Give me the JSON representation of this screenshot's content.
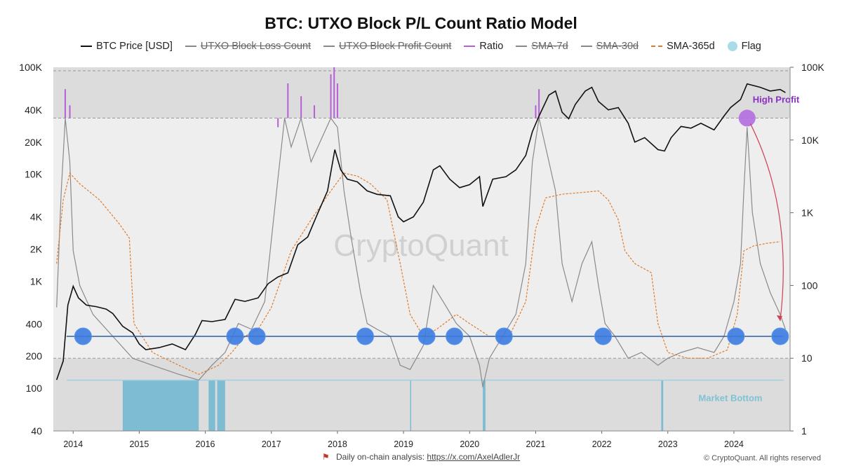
{
  "title": "BTC: UTXO Block P/L Count Ratio Model",
  "legend": [
    {
      "label": "BTC Price [USD]",
      "style": "line",
      "color": "#111111",
      "struck": false
    },
    {
      "label": "UTXO Block Loss Count",
      "style": "line",
      "color": "#888888",
      "struck": true
    },
    {
      "label": "UTXO Block Profit Count",
      "style": "line",
      "color": "#888888",
      "struck": true
    },
    {
      "label": "Ratio",
      "style": "line",
      "color": "#b65fd6",
      "struck": false
    },
    {
      "label": "SMA-7d",
      "style": "line",
      "color": "#888888",
      "struck": true
    },
    {
      "label": "SMA-30d",
      "style": "line",
      "color": "#888888",
      "struck": true
    },
    {
      "label": "SMA-365d",
      "style": "dashed",
      "color": "#e07b2a",
      "struck": false
    },
    {
      "label": "Flag",
      "style": "dot",
      "color": "#a8dceb",
      "struck": false
    }
  ],
  "footer": {
    "text": "Daily on-chain analysis: ",
    "link": "https://x.com/AxelAdlerJr",
    "copyright": "© CryptoQuant. All rights reserved"
  },
  "watermark": "CryptoQuant",
  "chart_data": {
    "type": "line",
    "left_axis": {
      "scale": "log",
      "range": [
        40,
        100000
      ],
      "ticks": [
        "40",
        "100",
        "200",
        "400",
        "1K",
        "2K",
        "4K",
        "10K",
        "20K",
        "40K",
        "100K"
      ],
      "tick_values": [
        40,
        100,
        200,
        400,
        1000,
        2000,
        4000,
        10000,
        20000,
        40000,
        100000
      ]
    },
    "right_axis": {
      "scale": "log",
      "range": [
        1,
        100000
      ],
      "ticks": [
        "1",
        "10",
        "100",
        "1K",
        "10K",
        "100K"
      ],
      "tick_values": [
        1,
        10,
        100,
        1000,
        10000,
        100000
      ]
    },
    "x_axis": {
      "range": [
        2013.7,
        2024.85
      ],
      "ticks": [
        "2014",
        "2015",
        "2016",
        "2017",
        "2018",
        "2019",
        "2020",
        "2021",
        "2022",
        "2023",
        "2024"
      ],
      "tick_values": [
        2014,
        2015,
        2016,
        2017,
        2018,
        2019,
        2020,
        2021,
        2022,
        2023,
        2024
      ]
    },
    "thresholds": {
      "upper_ratio": 20000,
      "lower_ratio": 10,
      "support_ratio": 20
    },
    "zones": {
      "top_color": "#dcdcdc",
      "mid_color": "#eeeeee",
      "bottom_color": "#dcdcdc"
    },
    "annotations": [
      {
        "text": "High Profit",
        "color": "#8a2fc4",
        "x": 2024.2,
        "y": 20000
      },
      {
        "text": "Market Bottom",
        "color": "#7fc2d6",
        "x": 2024.0,
        "y": 5
      }
    ],
    "btc_price": [
      [
        2013.75,
        120
      ],
      [
        2013.85,
        180
      ],
      [
        2013.92,
        600
      ],
      [
        2014.0,
        900
      ],
      [
        2014.08,
        700
      ],
      [
        2014.2,
        600
      ],
      [
        2014.35,
        580
      ],
      [
        2014.5,
        550
      ],
      [
        2014.6,
        500
      ],
      [
        2014.75,
        380
      ],
      [
        2014.9,
        330
      ],
      [
        2015.0,
        260
      ],
      [
        2015.1,
        230
      ],
      [
        2015.3,
        240
      ],
      [
        2015.5,
        260
      ],
      [
        2015.7,
        230
      ],
      [
        2015.85,
        320
      ],
      [
        2015.95,
        430
      ],
      [
        2016.1,
        420
      ],
      [
        2016.3,
        440
      ],
      [
        2016.45,
        680
      ],
      [
        2016.6,
        650
      ],
      [
        2016.8,
        700
      ],
      [
        2016.95,
        950
      ],
      [
        2017.1,
        1100
      ],
      [
        2017.25,
        1200
      ],
      [
        2017.4,
        2200
      ],
      [
        2017.55,
        2600
      ],
      [
        2017.7,
        4300
      ],
      [
        2017.85,
        7000
      ],
      [
        2017.96,
        17000
      ],
      [
        2018.05,
        11000
      ],
      [
        2018.15,
        9000
      ],
      [
        2018.3,
        8500
      ],
      [
        2018.45,
        7000
      ],
      [
        2018.6,
        6500
      ],
      [
        2018.8,
        6300
      ],
      [
        2018.92,
        4000
      ],
      [
        2019.0,
        3600
      ],
      [
        2019.15,
        4000
      ],
      [
        2019.3,
        5500
      ],
      [
        2019.45,
        11000
      ],
      [
        2019.55,
        12000
      ],
      [
        2019.7,
        9000
      ],
      [
        2019.85,
        7500
      ],
      [
        2020.0,
        8000
      ],
      [
        2020.15,
        9500
      ],
      [
        2020.2,
        5000
      ],
      [
        2020.35,
        9000
      ],
      [
        2020.55,
        9500
      ],
      [
        2020.7,
        11000
      ],
      [
        2020.85,
        15000
      ],
      [
        2020.95,
        25000
      ],
      [
        2021.05,
        35000
      ],
      [
        2021.2,
        55000
      ],
      [
        2021.3,
        60000
      ],
      [
        2021.4,
        38000
      ],
      [
        2021.5,
        33000
      ],
      [
        2021.6,
        45000
      ],
      [
        2021.75,
        60000
      ],
      [
        2021.85,
        65000
      ],
      [
        2021.95,
        48000
      ],
      [
        2022.1,
        40000
      ],
      [
        2022.25,
        42000
      ],
      [
        2022.4,
        30000
      ],
      [
        2022.5,
        20000
      ],
      [
        2022.65,
        22000
      ],
      [
        2022.85,
        17000
      ],
      [
        2022.95,
        16500
      ],
      [
        2023.05,
        22000
      ],
      [
        2023.2,
        28000
      ],
      [
        2023.35,
        27000
      ],
      [
        2023.5,
        30000
      ],
      [
        2023.7,
        26000
      ],
      [
        2023.85,
        35000
      ],
      [
        2023.95,
        42000
      ],
      [
        2024.1,
        50000
      ],
      [
        2024.2,
        70000
      ],
      [
        2024.4,
        65000
      ],
      [
        2024.55,
        60000
      ],
      [
        2024.7,
        62000
      ],
      [
        2024.78,
        58000
      ]
    ],
    "ratio_sma365": [
      [
        2013.75,
        200
      ],
      [
        2013.85,
        1500
      ],
      [
        2013.95,
        3500
      ],
      [
        2014.1,
        2500
      ],
      [
        2014.4,
        1500
      ],
      [
        2014.7,
        700
      ],
      [
        2014.85,
        450
      ],
      [
        2014.92,
        30
      ],
      [
        2015.2,
        12
      ],
      [
        2015.6,
        8
      ],
      [
        2015.9,
        6
      ],
      [
        2016.2,
        8
      ],
      [
        2016.4,
        12
      ],
      [
        2016.6,
        20
      ],
      [
        2016.8,
        25
      ],
      [
        2017.0,
        50
      ],
      [
        2017.3,
        300
      ],
      [
        2017.6,
        800
      ],
      [
        2017.9,
        2000
      ],
      [
        2018.1,
        3500
      ],
      [
        2018.3,
        3200
      ],
      [
        2018.5,
        2500
      ],
      [
        2018.75,
        1500
      ],
      [
        2018.95,
        200
      ],
      [
        2019.1,
        40
      ],
      [
        2019.3,
        20
      ],
      [
        2019.5,
        25
      ],
      [
        2019.8,
        40
      ],
      [
        2020.0,
        30
      ],
      [
        2020.3,
        20
      ],
      [
        2020.6,
        20
      ],
      [
        2020.85,
        60
      ],
      [
        2021.0,
        600
      ],
      [
        2021.15,
        1600
      ],
      [
        2021.4,
        1800
      ],
      [
        2021.7,
        1900
      ],
      [
        2021.95,
        2000
      ],
      [
        2022.1,
        1500
      ],
      [
        2022.25,
        800
      ],
      [
        2022.35,
        300
      ],
      [
        2022.5,
        200
      ],
      [
        2022.75,
        150
      ],
      [
        2022.85,
        30
      ],
      [
        2023.0,
        12
      ],
      [
        2023.3,
        10
      ],
      [
        2023.6,
        10
      ],
      [
        2023.9,
        13
      ],
      [
        2024.05,
        40
      ],
      [
        2024.15,
        300
      ],
      [
        2024.3,
        350
      ],
      [
        2024.5,
        380
      ],
      [
        2024.7,
        400
      ]
    ],
    "ratio_peaks": [
      [
        2013.85,
        20000
      ],
      [
        2013.88,
        50000
      ],
      [
        2013.95,
        30000
      ],
      [
        2017.1,
        15000
      ],
      [
        2017.25,
        60000
      ],
      [
        2017.45,
        40000
      ],
      [
        2017.65,
        30000
      ],
      [
        2017.9,
        80000
      ],
      [
        2017.95,
        100000
      ],
      [
        2018.0,
        60000
      ],
      [
        2021.0,
        30000
      ],
      [
        2021.05,
        50000
      ],
      [
        2021.12,
        20000
      ],
      [
        2024.2,
        20000
      ]
    ],
    "ratio_sma7": [
      [
        2013.75,
        50
      ],
      [
        2013.82,
        2000
      ],
      [
        2013.88,
        20000
      ],
      [
        2013.95,
        5000
      ],
      [
        2014.0,
        300
      ],
      [
        2014.1,
        100
      ],
      [
        2014.3,
        40
      ],
      [
        2014.6,
        20
      ],
      [
        2014.9,
        10
      ],
      [
        2015.2,
        8
      ],
      [
        2015.6,
        6
      ],
      [
        2015.9,
        5
      ],
      [
        2016.1,
        8
      ],
      [
        2016.3,
        12
      ],
      [
        2016.5,
        30
      ],
      [
        2016.7,
        25
      ],
      [
        2016.9,
        60
      ],
      [
        2017.1,
        3000
      ],
      [
        2017.2,
        20000
      ],
      [
        2017.3,
        8000
      ],
      [
        2017.45,
        20000
      ],
      [
        2017.6,
        5000
      ],
      [
        2017.75,
        10000
      ],
      [
        2017.9,
        20000
      ],
      [
        2018.0,
        15000
      ],
      [
        2018.1,
        2000
      ],
      [
        2018.2,
        500
      ],
      [
        2018.35,
        80
      ],
      [
        2018.45,
        30
      ],
      [
        2018.6,
        25
      ],
      [
        2018.8,
        20
      ],
      [
        2018.95,
        8
      ],
      [
        2019.1,
        7
      ],
      [
        2019.3,
        15
      ],
      [
        2019.45,
        100
      ],
      [
        2019.6,
        60
      ],
      [
        2019.8,
        30
      ],
      [
        2020.0,
        20
      ],
      [
        2020.15,
        8
      ],
      [
        2020.2,
        4
      ],
      [
        2020.3,
        10
      ],
      [
        2020.5,
        20
      ],
      [
        2020.7,
        40
      ],
      [
        2020.85,
        200
      ],
      [
        2020.95,
        5000
      ],
      [
        2021.05,
        20000
      ],
      [
        2021.15,
        8000
      ],
      [
        2021.3,
        2000
      ],
      [
        2021.4,
        200
      ],
      [
        2021.55,
        60
      ],
      [
        2021.7,
        200
      ],
      [
        2021.85,
        400
      ],
      [
        2021.95,
        100
      ],
      [
        2022.05,
        30
      ],
      [
        2022.2,
        20
      ],
      [
        2022.4,
        10
      ],
      [
        2022.6,
        12
      ],
      [
        2022.85,
        8
      ],
      [
        2023.0,
        10
      ],
      [
        2023.2,
        12
      ],
      [
        2023.45,
        14
      ],
      [
        2023.7,
        12
      ],
      [
        2023.85,
        20
      ],
      [
        2024.0,
        60
      ],
      [
        2024.1,
        200
      ],
      [
        2024.15,
        2000
      ],
      [
        2024.2,
        15000
      ],
      [
        2024.28,
        1000
      ],
      [
        2024.4,
        200
      ],
      [
        2024.55,
        80
      ],
      [
        2024.7,
        40
      ],
      [
        2024.78,
        25
      ]
    ],
    "flags": [
      {
        "x": 2014.15,
        "y": 20
      },
      {
        "x": 2016.45,
        "y": 20
      },
      {
        "x": 2016.78,
        "y": 20
      },
      {
        "x": 2018.42,
        "y": 20
      },
      {
        "x": 2019.35,
        "y": 20
      },
      {
        "x": 2019.77,
        "y": 20
      },
      {
        "x": 2020.52,
        "y": 20
      },
      {
        "x": 2022.02,
        "y": 20
      },
      {
        "x": 2024.03,
        "y": 20
      },
      {
        "x": 2024.7,
        "y": 20
      }
    ],
    "flag_bars": [
      [
        2014.75,
        2015.9
      ],
      [
        2016.05,
        2016.15
      ],
      [
        2016.18,
        2016.3
      ],
      [
        2019.1,
        2019.11
      ],
      [
        2020.2,
        2020.24
      ],
      [
        2022.9,
        2022.93
      ]
    ]
  }
}
